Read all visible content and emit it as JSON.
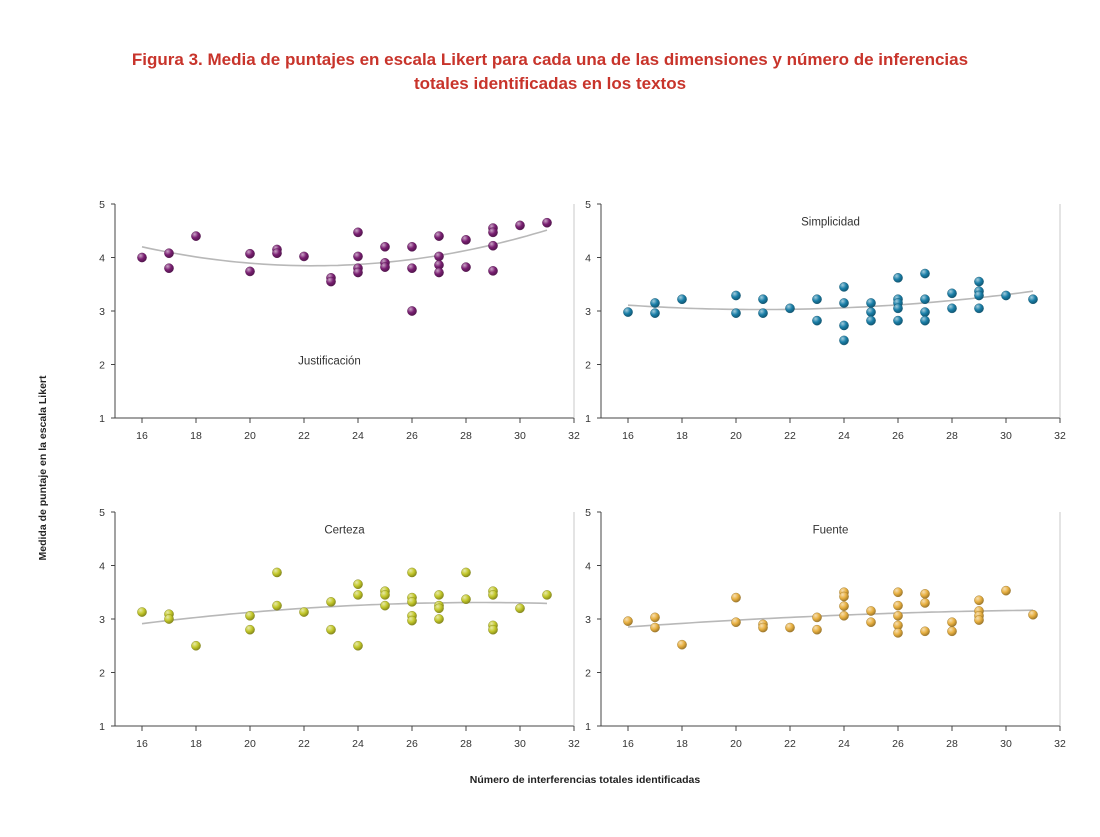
{
  "figure": {
    "title_line1": "Figura 3. Media de puntajes en escala Likert para cada una de las dimensiones y número de inferencias",
    "title_line2": "totales identificadas en los textos",
    "ylabel": "Medida de puntaje en la escala Likert",
    "xlabel": "Número de interferencias totales identificadas"
  },
  "chart_data": [
    {
      "type": "scatter",
      "title": "Justificación",
      "title_position": "bottom-center",
      "color": "#7a1f72",
      "xlim": [
        15,
        32
      ],
      "ylim": [
        1,
        5
      ],
      "xticks": [
        16,
        18,
        20,
        22,
        24,
        26,
        28,
        30,
        32
      ],
      "yticks": [
        1,
        2,
        3,
        4,
        5
      ],
      "grid": false,
      "trend": "quadratic",
      "points": [
        [
          16,
          4.0
        ],
        [
          17,
          4.08
        ],
        [
          17,
          3.8
        ],
        [
          18,
          4.4
        ],
        [
          20,
          4.07
        ],
        [
          20,
          3.74
        ],
        [
          21,
          4.15
        ],
        [
          21,
          4.08
        ],
        [
          22,
          4.02
        ],
        [
          23,
          3.62
        ],
        [
          23,
          3.55
        ],
        [
          24,
          4.47
        ],
        [
          24,
          4.02
        ],
        [
          24,
          3.8
        ],
        [
          24,
          3.72
        ],
        [
          25,
          4.2
        ],
        [
          25,
          3.9
        ],
        [
          25,
          3.82
        ],
        [
          26,
          4.2
        ],
        [
          26,
          3.8
        ],
        [
          26,
          3.0
        ],
        [
          27,
          4.4
        ],
        [
          27,
          4.02
        ],
        [
          27,
          3.86
        ],
        [
          27,
          3.72
        ],
        [
          28,
          4.33
        ],
        [
          28,
          3.82
        ],
        [
          29,
          4.55
        ],
        [
          29,
          4.47
        ],
        [
          29,
          4.22
        ],
        [
          29,
          3.75
        ],
        [
          30,
          4.6
        ],
        [
          31,
          4.65
        ]
      ]
    },
    {
      "type": "scatter",
      "title": "Simplicidad",
      "title_position": "top-center",
      "color": "#1a7fa8",
      "xlim": [
        15,
        32
      ],
      "ylim": [
        1,
        5
      ],
      "xticks": [
        16,
        18,
        20,
        22,
        24,
        26,
        28,
        30,
        32
      ],
      "yticks": [
        1,
        2,
        3,
        4,
        5
      ],
      "grid": false,
      "trend": "quadratic",
      "points": [
        [
          16,
          2.98
        ],
        [
          17,
          3.15
        ],
        [
          17,
          2.96
        ],
        [
          18,
          3.22
        ],
        [
          20,
          3.29
        ],
        [
          20,
          2.96
        ],
        [
          21,
          3.22
        ],
        [
          21,
          2.96
        ],
        [
          22,
          3.05
        ],
        [
          23,
          3.22
        ],
        [
          23,
          2.82
        ],
        [
          24,
          3.45
        ],
        [
          24,
          3.15
        ],
        [
          24,
          2.73
        ],
        [
          24,
          2.45
        ],
        [
          25,
          3.15
        ],
        [
          25,
          2.98
        ],
        [
          25,
          2.82
        ],
        [
          26,
          3.62
        ],
        [
          26,
          3.22
        ],
        [
          26,
          3.15
        ],
        [
          26,
          3.05
        ],
        [
          26,
          2.82
        ],
        [
          27,
          3.7
        ],
        [
          27,
          3.22
        ],
        [
          27,
          2.98
        ],
        [
          27,
          2.82
        ],
        [
          28,
          3.33
        ],
        [
          28,
          3.05
        ],
        [
          29,
          3.55
        ],
        [
          29,
          3.37
        ],
        [
          29,
          3.29
        ],
        [
          29,
          3.05
        ],
        [
          30,
          3.29
        ],
        [
          31,
          3.22
        ]
      ]
    },
    {
      "type": "scatter",
      "title": "Certeza",
      "title_position": "top-center",
      "color": "#c3c82a",
      "xlim": [
        15,
        32
      ],
      "ylim": [
        1,
        5
      ],
      "xticks": [
        16,
        18,
        20,
        22,
        24,
        26,
        28,
        30,
        32
      ],
      "yticks": [
        1,
        2,
        3,
        4,
        5
      ],
      "grid": false,
      "trend": "quadratic",
      "points": [
        [
          16,
          3.13
        ],
        [
          17,
          3.09
        ],
        [
          17,
          3.0
        ],
        [
          18,
          2.5
        ],
        [
          20,
          3.06
        ],
        [
          20,
          2.8
        ],
        [
          21,
          3.87
        ],
        [
          21,
          3.25
        ],
        [
          22,
          3.13
        ],
        [
          23,
          3.32
        ],
        [
          23,
          2.8
        ],
        [
          24,
          3.65
        ],
        [
          24,
          3.45
        ],
        [
          24,
          2.5
        ],
        [
          25,
          3.52
        ],
        [
          25,
          3.45
        ],
        [
          25,
          3.25
        ],
        [
          26,
          3.87
        ],
        [
          26,
          3.4
        ],
        [
          26,
          3.32
        ],
        [
          26,
          3.06
        ],
        [
          26,
          2.97
        ],
        [
          27,
          3.45
        ],
        [
          27,
          3.25
        ],
        [
          27,
          3.2
        ],
        [
          27,
          3.0
        ],
        [
          28,
          3.87
        ],
        [
          28,
          3.37
        ],
        [
          29,
          3.52
        ],
        [
          29,
          3.45
        ],
        [
          29,
          2.88
        ],
        [
          29,
          2.8
        ],
        [
          30,
          3.2
        ],
        [
          31,
          3.45
        ]
      ]
    },
    {
      "type": "scatter",
      "title": "Fuente",
      "title_position": "top-center",
      "color": "#e8b040",
      "xlim": [
        15,
        32
      ],
      "ylim": [
        1,
        5
      ],
      "xticks": [
        16,
        18,
        20,
        22,
        24,
        26,
        28,
        30,
        32
      ],
      "yticks": [
        1,
        2,
        3,
        4,
        5
      ],
      "grid": false,
      "trend": "quadratic",
      "points": [
        [
          16,
          2.96
        ],
        [
          17,
          3.03
        ],
        [
          17,
          2.84
        ],
        [
          18,
          2.52
        ],
        [
          20,
          3.4
        ],
        [
          20,
          2.94
        ],
        [
          21,
          2.9
        ],
        [
          21,
          2.84
        ],
        [
          22,
          2.84
        ],
        [
          23,
          3.03
        ],
        [
          23,
          2.8
        ],
        [
          24,
          3.5
        ],
        [
          24,
          3.42
        ],
        [
          24,
          3.24
        ],
        [
          24,
          3.06
        ],
        [
          25,
          3.15
        ],
        [
          25,
          2.94
        ],
        [
          26,
          3.5
        ],
        [
          26,
          3.25
        ],
        [
          26,
          3.06
        ],
        [
          26,
          2.88
        ],
        [
          26,
          2.74
        ],
        [
          27,
          3.47
        ],
        [
          27,
          3.3
        ],
        [
          27,
          2.77
        ],
        [
          28,
          2.94
        ],
        [
          28,
          2.77
        ],
        [
          29,
          3.35
        ],
        [
          29,
          3.15
        ],
        [
          29,
          3.06
        ],
        [
          29,
          2.98
        ],
        [
          30,
          3.53
        ],
        [
          31,
          3.08
        ]
      ]
    }
  ]
}
